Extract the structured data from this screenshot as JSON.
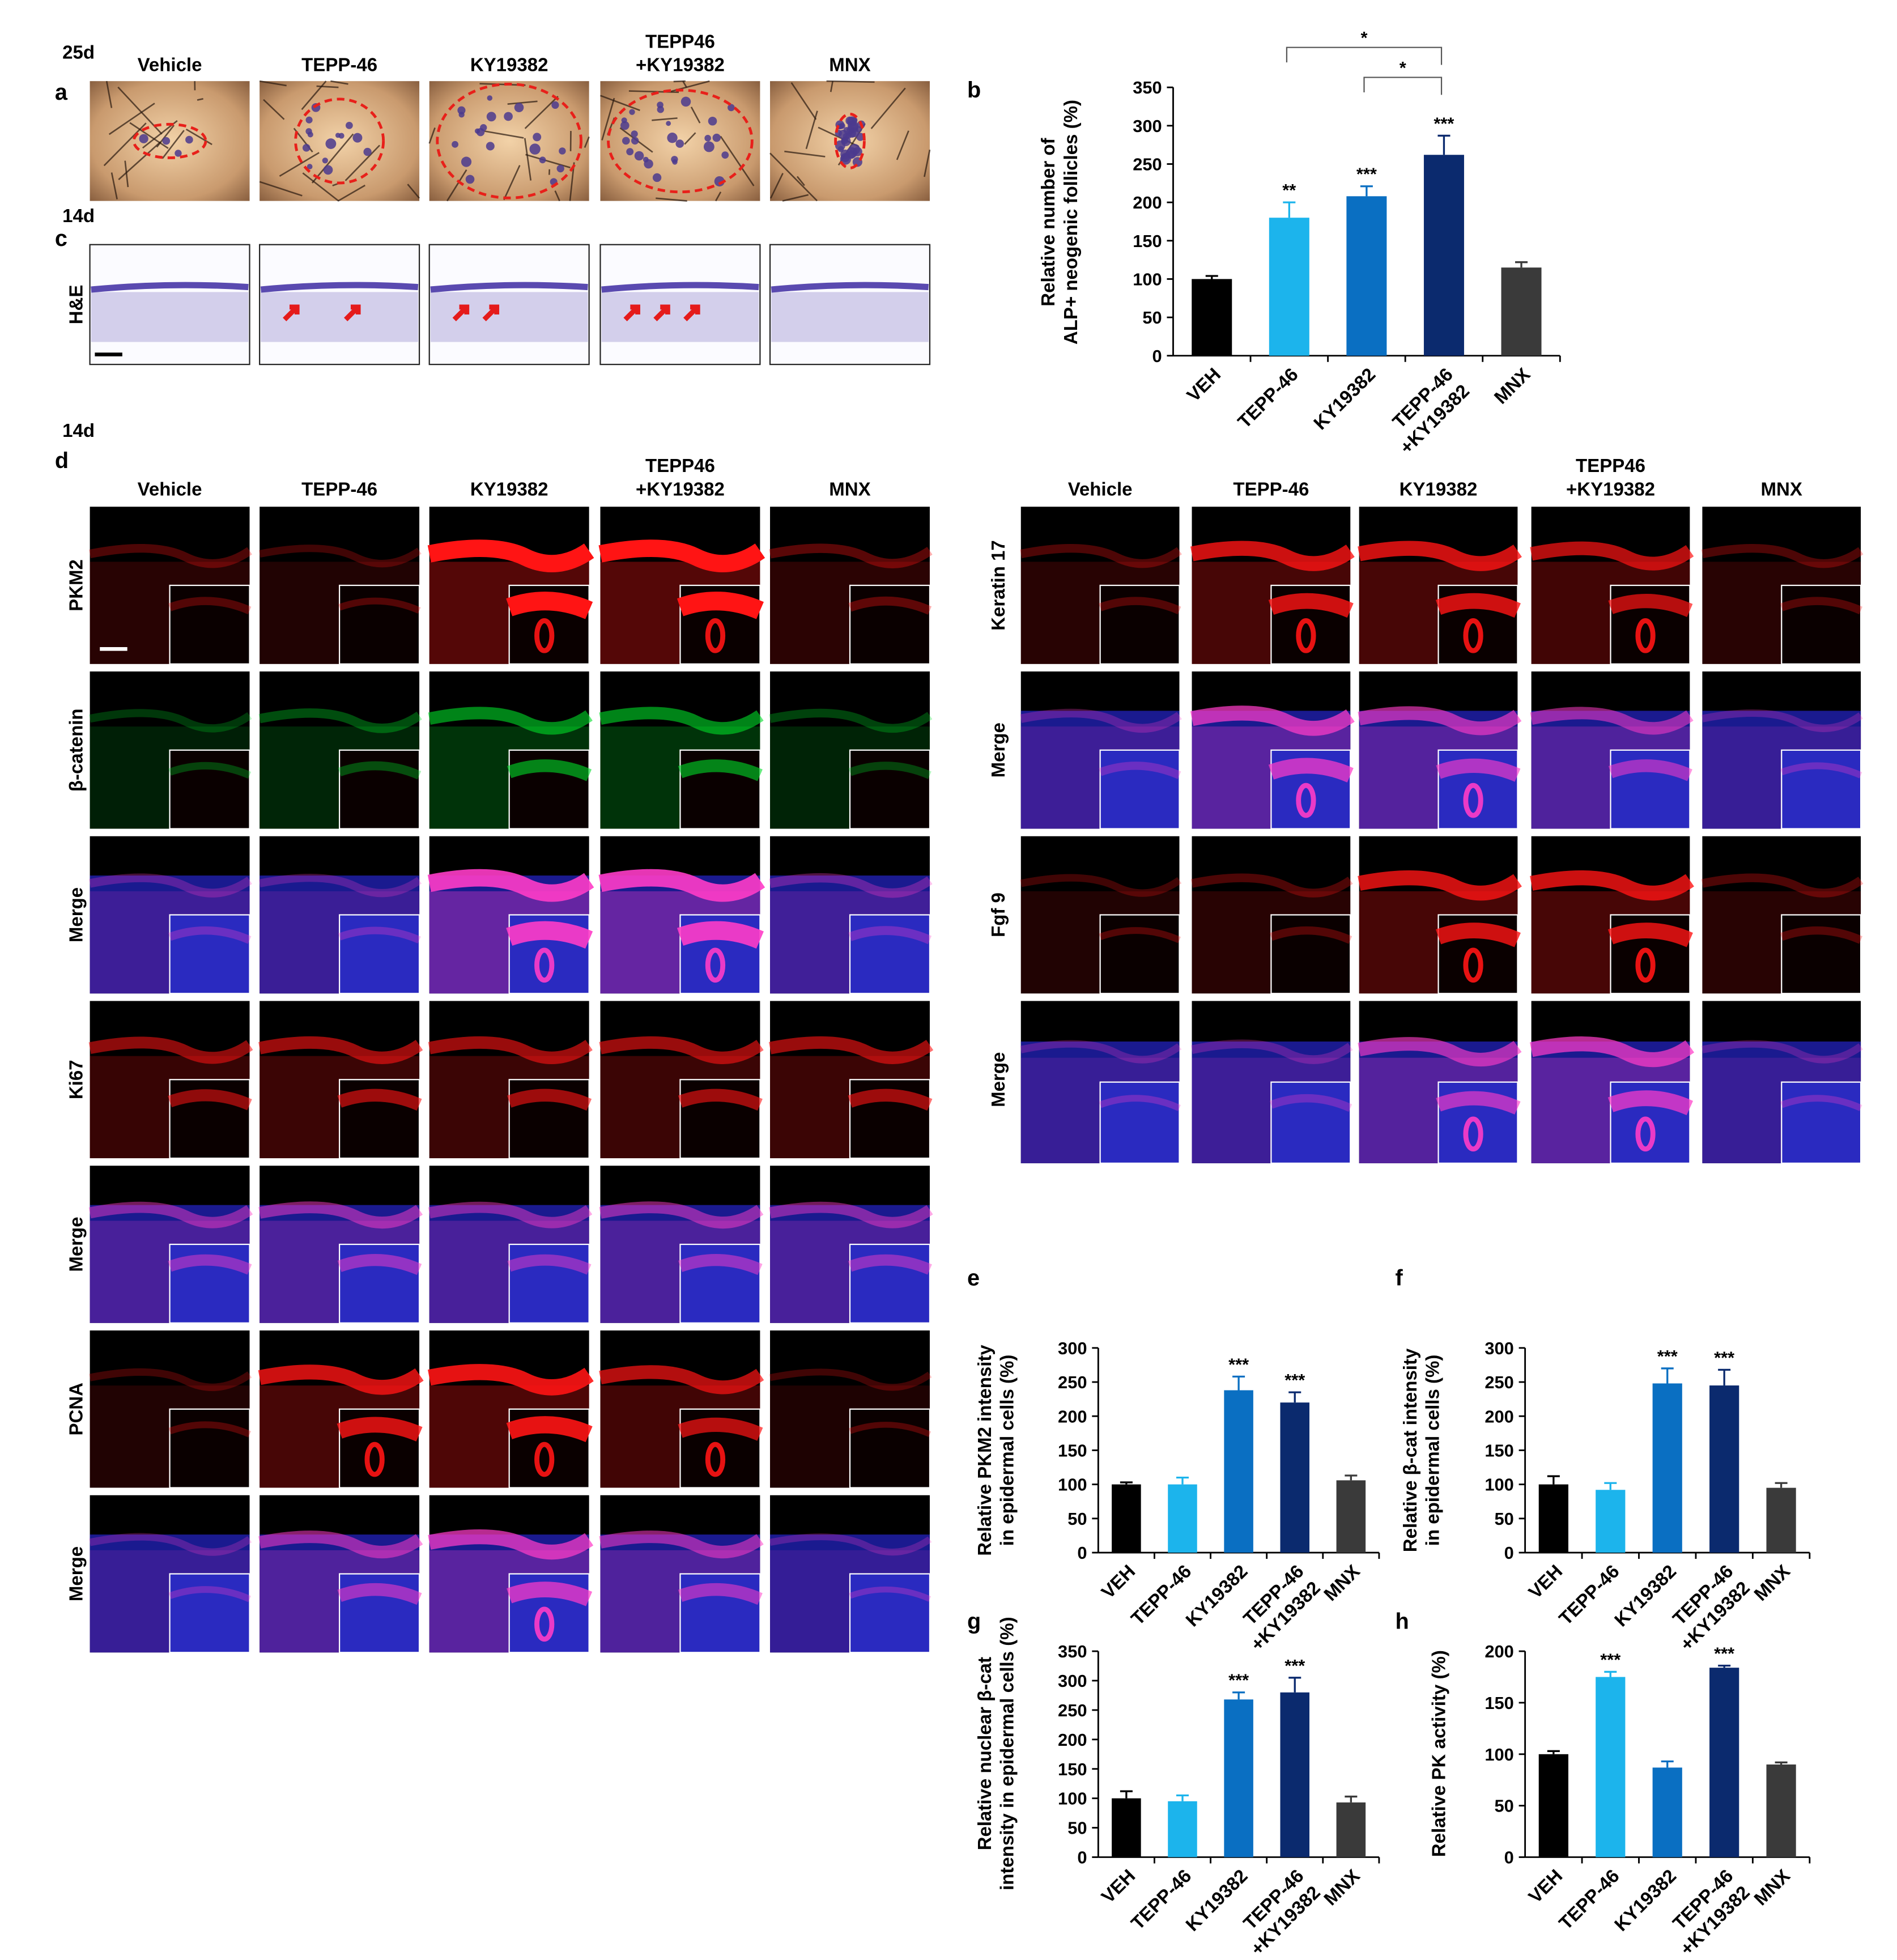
{
  "figure": {
    "a": {
      "letter": "a",
      "time": "25d",
      "columns": [
        "Vehicle",
        "TEPP-46",
        "KY19382",
        "TEPP46\n+KY19382",
        "MNX"
      ]
    },
    "c": {
      "letter": "c",
      "time": "14d",
      "row": "H&E"
    },
    "d": {
      "letter": "d",
      "time": "14d",
      "columns": [
        "Vehicle",
        "TEPP-46",
        "KY19382",
        "TEPP46\n+KY19382",
        "MNX"
      ],
      "rows": [
        "PKM2",
        "β-catenin",
        "Merge",
        "Ki67",
        "Merge",
        "PCNA",
        "Merge"
      ],
      "right_columns": [
        "Vehicle",
        "TEPP-46",
        "KY19382",
        "TEPP46\n+KY19382",
        "MNX"
      ],
      "right_rows": [
        "Keratin 17",
        "Merge",
        "Fgf 9",
        "Merge"
      ]
    }
  },
  "chart_data": [
    {
      "type": "bar",
      "letter": "b",
      "ylabel": [
        "Relative number of",
        "ALP+ neogenic follicles (%)"
      ],
      "categories": [
        "VEH",
        "TEPP-46",
        "KY19382",
        "TEPP-46\n+KY19382",
        "MNX"
      ],
      "values": [
        100,
        180,
        208,
        262,
        115
      ],
      "errors": [
        4,
        20,
        13,
        25,
        7
      ],
      "annotations": [
        null,
        "**",
        "***",
        "***",
        null
      ],
      "brackets": [
        {
          "between": [
            "TEPP-46",
            "TEPP-46\n+KY19382"
          ],
          "label": "*"
        },
        {
          "between": [
            "KY19382",
            "TEPP-46\n+KY19382"
          ],
          "label": "*"
        }
      ],
      "colors": [
        "#000000",
        "#1cb4ec",
        "#0a6fc2",
        "#0b2a6e",
        "#3a3a3a"
      ],
      "ylim": [
        0,
        350
      ],
      "yticks": [
        0,
        50,
        100,
        150,
        200,
        250,
        300,
        350
      ]
    },
    {
      "type": "bar",
      "letter": "e",
      "ylabel": [
        "Relative PKM2 intensity",
        "in epidermal cells (%)"
      ],
      "categories": [
        "VEH",
        "TEPP-46",
        "KY19382",
        "TEPP-46\n+KY19382",
        "MNX"
      ],
      "values": [
        100,
        100,
        238,
        220,
        106
      ],
      "errors": [
        3,
        10,
        20,
        15,
        7
      ],
      "annotations": [
        null,
        null,
        "***",
        "***",
        null
      ],
      "colors": [
        "#000000",
        "#1cb4ec",
        "#0a6fc2",
        "#0b2a6e",
        "#3a3a3a"
      ],
      "ylim": [
        0,
        300
      ],
      "yticks": [
        0,
        50,
        100,
        150,
        200,
        250,
        300
      ]
    },
    {
      "type": "bar",
      "letter": "f",
      "ylabel": [
        "Relative β-cat intensity",
        "in epidermal cells (%)"
      ],
      "categories": [
        "VEH",
        "TEPP-46",
        "KY19382",
        "TEPP-46\n+KY19382",
        "MNX"
      ],
      "values": [
        100,
        92,
        248,
        245,
        95
      ],
      "errors": [
        12,
        10,
        22,
        23,
        7
      ],
      "annotations": [
        null,
        null,
        "***",
        "***",
        null
      ],
      "colors": [
        "#000000",
        "#1cb4ec",
        "#0a6fc2",
        "#0b2a6e",
        "#3a3a3a"
      ],
      "ylim": [
        0,
        300
      ],
      "yticks": [
        0,
        50,
        100,
        150,
        200,
        250,
        300
      ]
    },
    {
      "type": "bar",
      "letter": "g",
      "ylabel": [
        "Relative nuclear β-cat",
        "intensity in epidermal cells (%)"
      ],
      "categories": [
        "VEH",
        "TEPP-46",
        "KY19382",
        "TEPP-46\n+KY19382",
        "MNX"
      ],
      "values": [
        100,
        95,
        268,
        280,
        93
      ],
      "errors": [
        12,
        10,
        12,
        25,
        10
      ],
      "annotations": [
        null,
        null,
        "***",
        "***",
        null
      ],
      "colors": [
        "#000000",
        "#1cb4ec",
        "#0a6fc2",
        "#0b2a6e",
        "#3a3a3a"
      ],
      "ylim": [
        0,
        350
      ],
      "yticks": [
        0,
        50,
        100,
        150,
        200,
        250,
        300,
        350
      ]
    },
    {
      "type": "bar",
      "letter": "h",
      "ylabel": [
        "Relative PK activity (%)"
      ],
      "categories": [
        "VEH",
        "TEPP-46",
        "KY19382",
        "TEPP-46\n+KY19382",
        "MNX"
      ],
      "values": [
        100,
        175,
        87,
        184,
        90
      ],
      "errors": [
        3,
        5,
        6,
        2,
        2
      ],
      "annotations": [
        null,
        "***",
        null,
        "***",
        null
      ],
      "colors": [
        "#000000",
        "#1cb4ec",
        "#0a6fc2",
        "#0b2a6e",
        "#3a3a3a"
      ],
      "ylim": [
        0,
        200
      ],
      "yticks": [
        0,
        50,
        100,
        150,
        200
      ]
    }
  ]
}
